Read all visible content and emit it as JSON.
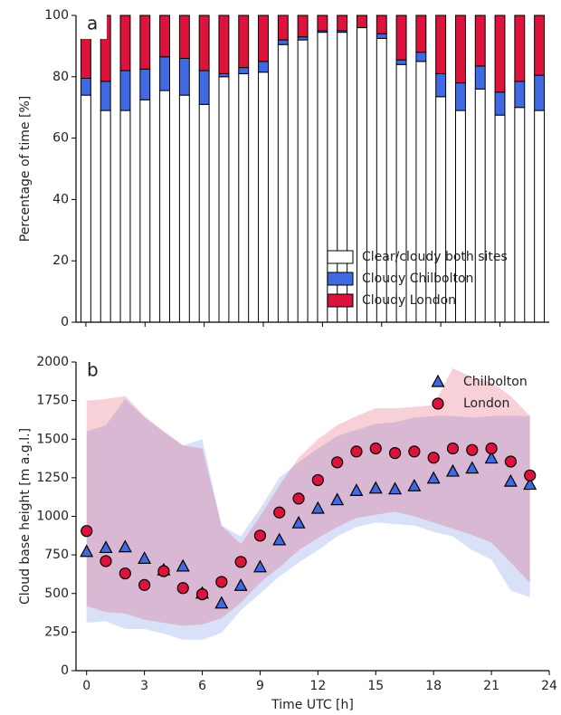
{
  "chart_data": [
    {
      "type": "bar",
      "stacked": true,
      "panel_label": "a",
      "ylabel": "Percentage of time [%]",
      "x": [
        0,
        1,
        2,
        3,
        4,
        5,
        6,
        7,
        8,
        9,
        10,
        11,
        12,
        13,
        14,
        15,
        16,
        17,
        18,
        19,
        20,
        21,
        22,
        23
      ],
      "xlim": [
        -0.5,
        23.5
      ],
      "xticks": [
        0,
        3,
        6,
        9,
        12,
        15,
        18,
        21
      ],
      "xticklabels": false,
      "ylim": [
        0,
        100
      ],
      "yticks": [
        0,
        20,
        40,
        60,
        80,
        100
      ],
      "legend": "lower right",
      "series": [
        {
          "name": "Clear/cloudy both sites",
          "color": "#ffffff",
          "values": [
            74,
            69,
            69,
            72.5,
            75.5,
            74,
            71,
            80,
            81,
            81.5,
            90.5,
            92,
            94.5,
            94.5,
            96,
            92.5,
            84,
            85,
            73.5,
            69,
            76,
            67.5,
            70,
            69
          ]
        },
        {
          "name": "Cloudy Chilbolton",
          "color": "#4169e1",
          "values": [
            5.5,
            9.5,
            13,
            10,
            11,
            12,
            11,
            1,
            2,
            3.5,
            1.5,
            1,
            0.5,
            0.5,
            0,
            1.5,
            1.5,
            3,
            7.5,
            9,
            7.5,
            7.5,
            8.5,
            11.5
          ]
        },
        {
          "name": "Cloudy London",
          "color": "#dc143c",
          "values": [
            20.5,
            21.5,
            18,
            17.5,
            13.5,
            14,
            18,
            19,
            17,
            15,
            8,
            7,
            5,
            5,
            4,
            6,
            14.5,
            12,
            19,
            22,
            16.5,
            25,
            21.5,
            19.5
          ]
        }
      ]
    },
    {
      "type": "scatter",
      "panel_label": "b",
      "ylabel": "Cloud base height [m a.g.l.]",
      "xlabel": "Time UTC [h]",
      "x": [
        0,
        1,
        2,
        3,
        4,
        5,
        6,
        7,
        8,
        9,
        10,
        11,
        12,
        13,
        14,
        15,
        16,
        17,
        18,
        19,
        20,
        21,
        22,
        23
      ],
      "xlim": [
        -0.55,
        24
      ],
      "xticks": [
        0,
        3,
        6,
        9,
        12,
        15,
        18,
        21,
        24
      ],
      "ylim": [
        0,
        2000
      ],
      "yticks": [
        0,
        250,
        500,
        750,
        1000,
        1250,
        1500,
        1750,
        2000
      ],
      "legend": "upper right",
      "series": [
        {
          "name": "Chilbolton",
          "color": "#4169e1",
          "marker": "triangle",
          "values": [
            770,
            795,
            800,
            725,
            650,
            675,
            500,
            435,
            550,
            670,
            845,
            955,
            1050,
            1105,
            1165,
            1180,
            1175,
            1195,
            1245,
            1290,
            1310,
            1375,
            1225,
            1205
          ],
          "band_lower": [
            310,
            320,
            270,
            270,
            240,
            200,
            200,
            245,
            390,
            500,
            610,
            700,
            780,
            870,
            930,
            960,
            950,
            940,
            900,
            870,
            780,
            720,
            520,
            475
          ],
          "band_upper": [
            1550,
            1590,
            1760,
            1640,
            1550,
            1460,
            1500,
            940,
            870,
            1050,
            1250,
            1350,
            1440,
            1520,
            1560,
            1600,
            1610,
            1640,
            1650,
            1650,
            1640,
            1650,
            1650,
            1650
          ]
        },
        {
          "name": "London",
          "color": "#dc143c",
          "marker": "circle",
          "values": [
            905,
            710,
            630,
            555,
            645,
            535,
            495,
            575,
            705,
            875,
            1025,
            1115,
            1235,
            1350,
            1420,
            1440,
            1410,
            1420,
            1380,
            1440,
            1430,
            1440,
            1355,
            1265
          ],
          "band_lower": [
            420,
            380,
            370,
            330,
            310,
            290,
            300,
            340,
            440,
            570,
            670,
            780,
            860,
            930,
            990,
            1010,
            1030,
            1000,
            960,
            920,
            880,
            830,
            700,
            570
          ],
          "band_upper": [
            1750,
            1760,
            1780,
            1650,
            1550,
            1460,
            1440,
            940,
            820,
            1000,
            1200,
            1380,
            1500,
            1590,
            1650,
            1700,
            1700,
            1710,
            1720,
            1960,
            1900,
            1870,
            1780,
            1650
          ]
        }
      ]
    }
  ]
}
